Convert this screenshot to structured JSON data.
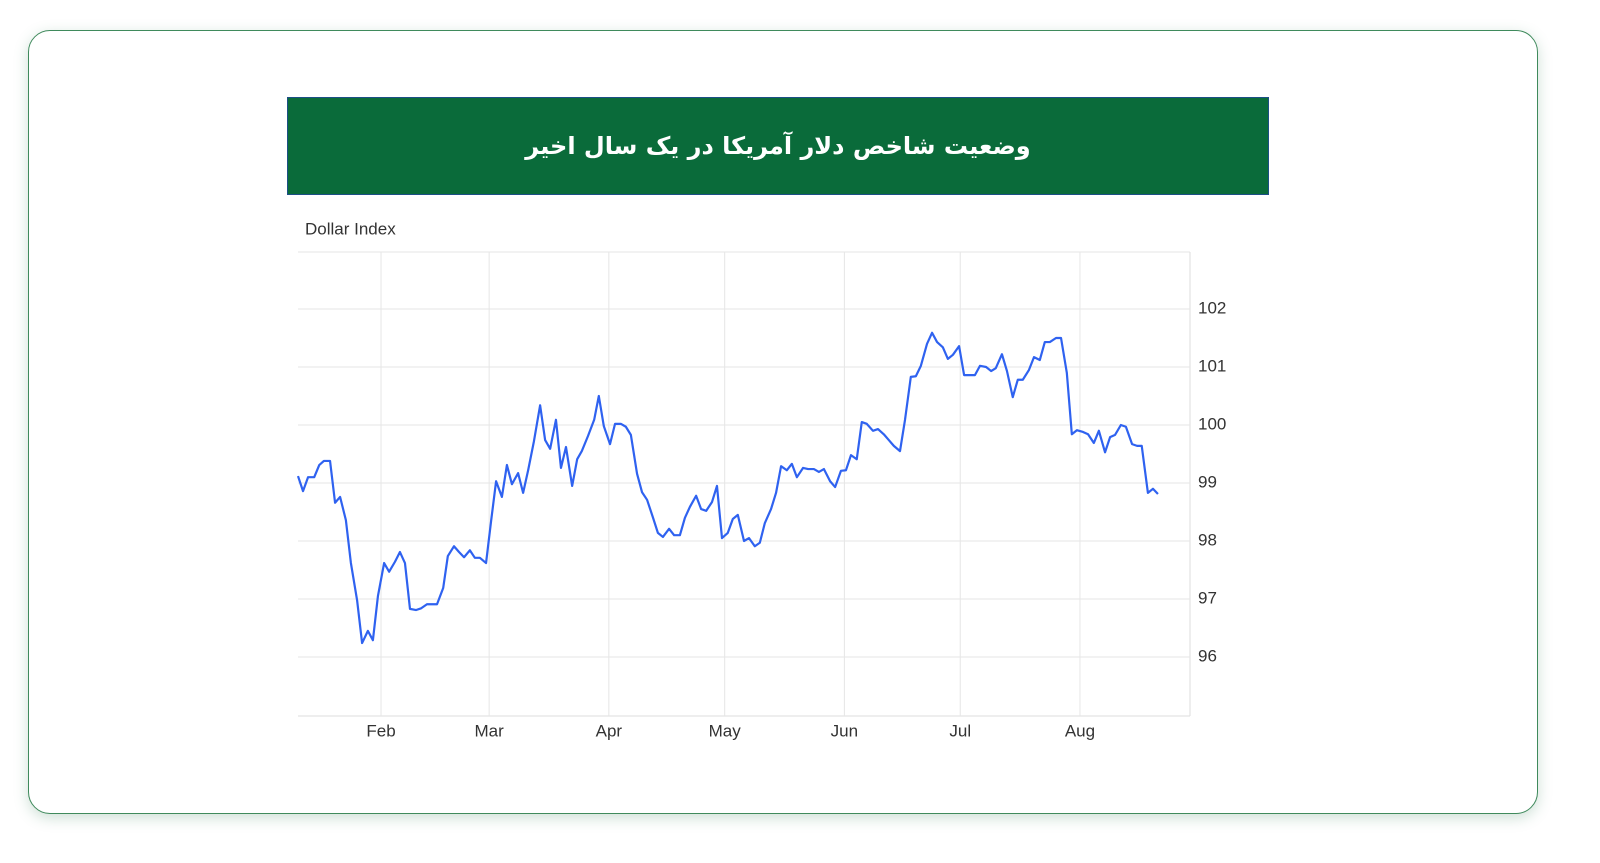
{
  "chart_data": {
    "type": "line",
    "title": "وضعیت شاخص دلار آمریکا در یک سال اخیر",
    "y_label": "Dollar Index",
    "color": "#2f62f0",
    "x": [
      10.5,
      11.8,
      13.1,
      14.7,
      16.0,
      17.2,
      18.8,
      20.1,
      21.4,
      22.9,
      24.2,
      25.8,
      27.1,
      28.6,
      29.9,
      31.2,
      32.8,
      34.1,
      35.6,
      36.9,
      38.2,
      39.5,
      41.1,
      42.4,
      43.9,
      45.2,
      46.5,
      48.1,
      49.3,
      50.9,
      52.2,
      53.5,
      55.0,
      56.3,
      57.6,
      59.2,
      60.5,
      61.8,
      63.3,
      64.6,
      65.9,
      67.5,
      68.8,
      70.1,
      71.6,
      73.2,
      74.5,
      75.8,
      77.3,
      78.6,
      79.9,
      81.5,
      82.8,
      84.0,
      85.6,
      87.2,
      88.4,
      89.7,
      91.3,
      92.6,
      94.1,
      95.4,
      96.7,
      98.3,
      99.6,
      100.9,
      102.4,
      103.7,
      105.0,
      106.6,
      107.9,
      109.4,
      110.7,
      112.0,
      113.6,
      114.9,
      116.2,
      117.7,
      119.0,
      120.3,
      121.8,
      123.1,
      124.4,
      126.0,
      127.3,
      128.8,
      130.1,
      131.4,
      133.0,
      134.3,
      135.6,
      137.1,
      138.4,
      139.7,
      141.3,
      142.6,
      144.1,
      145.4,
      146.7,
      148.3,
      149.6,
      151.1,
      152.4,
      153.7,
      155.2,
      156.5,
      157.8,
      159.4,
      160.7,
      162.2,
      163.5,
      164.8,
      166.4,
      167.7,
      169.2,
      170.5,
      171.8,
      173.4,
      174.7,
      176.0,
      177.5,
      178.8,
      180.1,
      181.7,
      183.0,
      184.3,
      185.8,
      187.1,
      188.7,
      190.0,
      191.2,
      192.8,
      194.1,
      195.6,
      196.9,
      198.2,
      199.8,
      201.1,
      202.6,
      203.9,
      205.2,
      206.8,
      208.1,
      209.6,
      210.9,
      212.2,
      213.8,
      215.1,
      216.6,
      217.9,
      219.5,
      220.8,
      222.1,
      223.6,
      224.9,
      226.5,
      227.8,
      229.0,
      230.6,
      231.9,
      233.2
    ],
    "values": [
      99.12,
      98.86,
      99.1,
      99.1,
      99.31,
      99.38,
      99.38,
      98.66,
      98.76,
      98.36,
      97.62,
      96.98,
      96.24,
      96.45,
      96.29,
      97.05,
      97.62,
      97.47,
      97.64,
      97.81,
      97.62,
      96.83,
      96.81,
      96.84,
      96.91,
      96.91,
      96.91,
      97.19,
      97.74,
      97.91,
      97.81,
      97.72,
      97.84,
      97.71,
      97.71,
      97.62,
      98.34,
      99.03,
      98.76,
      99.31,
      98.98,
      99.17,
      98.83,
      99.22,
      99.72,
      100.34,
      99.74,
      99.59,
      100.09,
      99.26,
      99.62,
      98.95,
      99.41,
      99.55,
      99.81,
      100.09,
      100.5,
      99.98,
      99.67,
      100.02,
      100.02,
      99.97,
      99.83,
      99.16,
      98.84,
      98.71,
      98.41,
      98.14,
      98.07,
      98.21,
      98.1,
      98.1,
      98.4,
      98.59,
      98.78,
      98.55,
      98.52,
      98.67,
      98.95,
      98.05,
      98.14,
      98.38,
      98.45,
      98.0,
      98.05,
      97.91,
      97.97,
      98.31,
      98.55,
      98.83,
      99.29,
      99.22,
      99.33,
      99.1,
      99.26,
      99.24,
      99.24,
      99.19,
      99.24,
      99.03,
      98.93,
      99.21,
      99.22,
      99.48,
      99.41,
      100.05,
      100.02,
      99.9,
      99.93,
      99.84,
      99.74,
      99.64,
      99.55,
      100.09,
      100.83,
      100.84,
      101.02,
      101.4,
      101.59,
      101.43,
      101.34,
      101.14,
      101.21,
      101.36,
      100.86,
      100.86,
      100.86,
      101.02,
      101.0,
      100.93,
      100.98,
      101.22,
      100.93,
      100.48,
      100.78,
      100.78,
      100.95,
      101.17,
      101.12,
      101.43,
      101.43,
      101.5,
      101.5,
      100.9,
      99.84,
      99.91,
      99.88,
      99.84,
      99.69,
      99.9,
      99.53,
      99.79,
      99.83,
      100.0,
      99.97,
      99.67,
      99.64,
      99.64,
      98.83,
      98.9,
      98.81
    ],
    "xlim": [
      10.5,
      241.5
    ],
    "xticks": [
      {
        "value": 32,
        "label": "Feb"
      },
      {
        "value": 60,
        "label": "Mar"
      },
      {
        "value": 91,
        "label": "Apr"
      },
      {
        "value": 121,
        "label": "May"
      },
      {
        "value": 152,
        "label": "Jun"
      },
      {
        "value": 182,
        "label": "Jul"
      },
      {
        "value": 213,
        "label": "Aug"
      }
    ],
    "ylim": [
      95,
      103
    ],
    "yticks": [
      96,
      97,
      98,
      99,
      100,
      101,
      102
    ],
    "grid": true
  }
}
